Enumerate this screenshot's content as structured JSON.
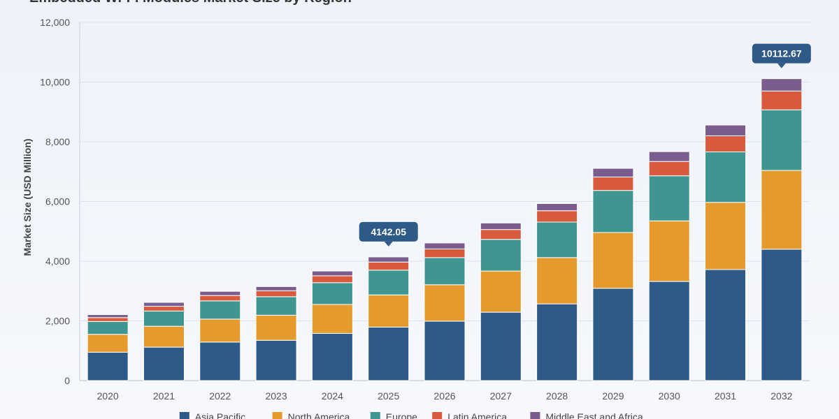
{
  "chart_data": {
    "type": "bar",
    "stacked": true,
    "title": "Embedded Wi-Fi Modules Market Size by Region",
    "xlabel": "",
    "ylabel": "Market Size (USD Million)",
    "ylim": [
      0,
      12000
    ],
    "yticks": [
      0,
      2000,
      4000,
      6000,
      8000,
      10000,
      12000
    ],
    "ytick_labels": [
      "0",
      "2,000",
      "4,000",
      "6,000",
      "8,000",
      "10,000",
      "12,000"
    ],
    "grid": true,
    "legend_position": "bottom",
    "categories": [
      "2020",
      "2021",
      "2022",
      "2023",
      "2024",
      "2025",
      "2026",
      "2027",
      "2028",
      "2029",
      "2030",
      "2031",
      "2032"
    ],
    "series": [
      {
        "name": "Asia Pacific",
        "color": "#2e5a87",
        "values": [
          950,
          1120,
          1290,
          1350,
          1580,
          1790,
          1990,
          2290,
          2570,
          3090,
          3320,
          3720,
          4400
        ]
      },
      {
        "name": "North America",
        "color": "#e59a2e",
        "values": [
          600,
          700,
          770,
          840,
          970,
          1080,
          1220,
          1380,
          1550,
          1870,
          2030,
          2250,
          2640
        ]
      },
      {
        "name": "Europe",
        "color": "#3f9690",
        "values": [
          430,
          510,
          610,
          620,
          730,
          830,
          910,
          1060,
          1190,
          1410,
          1510,
          1690,
          2030
        ]
      },
      {
        "name": "Latin America",
        "color": "#d75b3c",
        "values": [
          130,
          160,
          180,
          200,
          230,
          270,
          290,
          330,
          380,
          450,
          480,
          540,
          630
        ]
      },
      {
        "name": "Middle East and Africa",
        "color": "#7a5c8f",
        "values": [
          100,
          130,
          140,
          140,
          160,
          172,
          200,
          220,
          240,
          290,
          330,
          360,
          413
        ]
      }
    ],
    "annotations": [
      {
        "category": "2025",
        "value": 4142.05,
        "text": "4142.05"
      },
      {
        "category": "2032",
        "value": 10112.67,
        "text": "10112.67"
      }
    ]
  }
}
